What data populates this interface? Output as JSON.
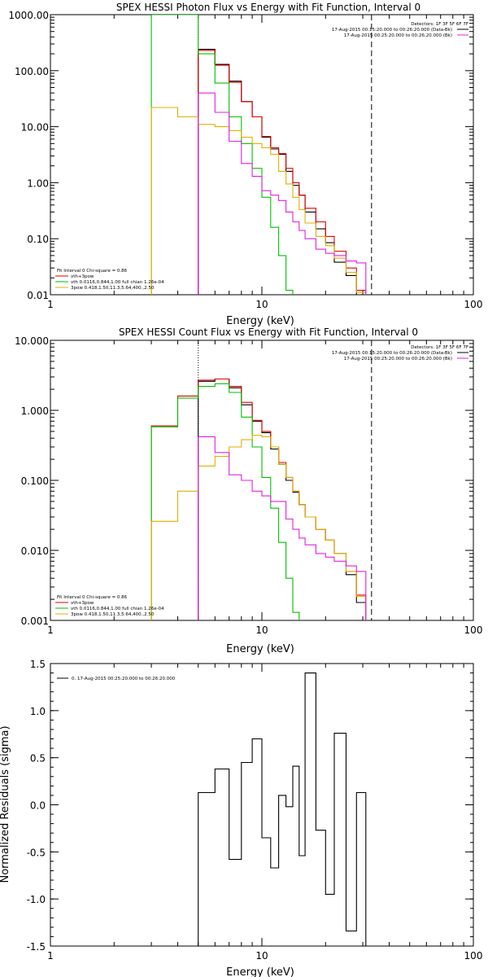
{
  "chart_data": [
    {
      "type": "line",
      "id": "photon",
      "title": "SPEX HESSI Photon Flux vs Energy with Fit Function, Interval 0",
      "xlabel": "Energy (keV)",
      "ylabel": "",
      "xscale": "log",
      "yscale": "log",
      "xlim": [
        1,
        100
      ],
      "ylim": [
        0.01,
        1000
      ],
      "xticks": [
        "1",
        "10",
        "100"
      ],
      "yticks": [
        "0.01",
        "0.10",
        "1.00",
        "10.00",
        "100.00",
        "1000.00"
      ],
      "vlines": [
        {
          "x": 5.0,
          "style": "dotted",
          "color": "#8a0a8a"
        },
        {
          "x": 33.0,
          "style": "dashed",
          "color": "#000000"
        }
      ],
      "legend_topright": {
        "header": "Detectors: 1F 3F 5F 6F 7F",
        "entries": [
          {
            "text": "17-Aug-2015 00:15:20.000 to 00:26:20.000 (Data-Bk)",
            "color": "#000000"
          },
          {
            "text": "17-Aug-2015 00:25:20.000 to 00:26:20.000 (Bk)",
            "color": "#e020e0"
          }
        ]
      },
      "legend_bottomleft": {
        "header": "Fit Interval 0   Chi-square = 0.86",
        "entries": [
          {
            "text": "vth+3pow",
            "color": "#e00000"
          },
          {
            "text": "vth 0.0116,0.844,1.00   full chian 1.26e-04",
            "color": "#00c000"
          },
          {
            "text": "3pow 0.418,1.50,11.3,5.64,400.,2.50",
            "color": "#e0b000"
          }
        ]
      },
      "bin_edges": [
        3.0,
        4.0,
        5.0,
        6.0,
        7.0,
        8.0,
        9.0,
        10.0,
        11.0,
        12.0,
        13.0,
        14.0,
        15.0,
        16.0,
        18.0,
        20.0,
        22.0,
        25.0,
        28.0,
        31.0,
        33.0
      ],
      "series": [
        {
          "name": "Data-Bk",
          "color": "#000000",
          "start": 5.0,
          "values": [
            240,
            130,
            65,
            28,
            15,
            6.5,
            4.0,
            3.2,
            1.6,
            0.9,
            0.6,
            0.3,
            0.15,
            0.085,
            0.038,
            0.022,
            0.01
          ]
        },
        {
          "name": "vth+3pow",
          "color": "#e00000",
          "start": 5.0,
          "values": [
            230,
            125,
            62,
            28,
            15,
            6.7,
            4.2,
            3.3,
            1.8,
            1.0,
            0.6,
            0.35,
            0.2,
            0.11,
            0.06,
            0.03,
            0.012
          ]
        },
        {
          "name": "vth",
          "color": "#00c000",
          "start": 3.0,
          "values": [
            1000,
            1000,
            200,
            60,
            15,
            5,
            1.8,
            0.55,
            0.16,
            0.05,
            0.012,
            0.003
          ]
        },
        {
          "name": "3pow",
          "color": "#e0b000",
          "start": 3.0,
          "values": [
            22,
            15,
            11,
            10,
            8.5,
            6.5,
            5.0,
            4.2,
            3.2,
            1.6,
            0.95,
            0.55,
            0.33,
            0.19,
            0.11,
            0.075,
            0.045,
            0.025,
            0.011
          ]
        },
        {
          "name": "Bk",
          "color": "#e020e0",
          "start": 5.0,
          "values": [
            40,
            18,
            5.5,
            2.2,
            1.3,
            0.72,
            0.6,
            0.48,
            0.3,
            0.2,
            0.14,
            0.1,
            0.065,
            0.055,
            0.05,
            0.04,
            0.037
          ]
        }
      ]
    },
    {
      "type": "line",
      "id": "count",
      "title": "SPEX HESSI Count Flux vs Energy with Fit Function, Interval 0",
      "xlabel": "Energy (keV)",
      "ylabel": "",
      "xscale": "log",
      "yscale": "log",
      "xlim": [
        1,
        100
      ],
      "ylim": [
        0.001,
        10
      ],
      "xticks": [
        "1",
        "10",
        "100"
      ],
      "yticks": [
        "0.001",
        "0.010",
        "0.100",
        "1.000",
        "10.000"
      ],
      "vlines": [
        {
          "x": 5.0,
          "style": "dotted",
          "color": "#000000"
        },
        {
          "x": 33.0,
          "style": "dashed",
          "color": "#000000"
        }
      ],
      "legend_topright": {
        "header": "Detectors: 1F 3F 5F 6F 7F",
        "entries": [
          {
            "text": "17-Aug-2015 00:15:20.000 to 00:26:20.000 (Data-Bk)",
            "color": "#000000"
          },
          {
            "text": "17-Aug-2015 00:25:20.000 to 00:26:20.000 (Bk)",
            "color": "#e020e0"
          }
        ]
      },
      "legend_bottomleft": {
        "header": "Fit Interval 0   Chi-square = 0.86",
        "entries": [
          {
            "text": "vth+3pow",
            "color": "#e00000"
          },
          {
            "text": "vth 0.0116,0.844,1.00   full chian 1.26e-04",
            "color": "#00c000"
          },
          {
            "text": "3pow 0.418,1.50,11.3,5.64,400.,2.50",
            "color": "#e0b000"
          }
        ]
      },
      "bin_edges": [
        3.0,
        4.0,
        5.0,
        6.0,
        7.0,
        8.0,
        9.0,
        10.0,
        11.0,
        12.0,
        13.0,
        14.0,
        15.0,
        16.0,
        18.0,
        20.0,
        22.0,
        25.0,
        28.0,
        31.0,
        33.0
      ],
      "series": [
        {
          "name": "Data-Bk",
          "color": "#000000",
          "start": 5.0,
          "values": [
            2.6,
            2.8,
            2.1,
            1.2,
            0.7,
            0.48,
            0.28,
            0.17,
            0.1,
            0.068,
            0.045,
            0.03,
            0.02,
            0.014,
            0.009,
            0.0045,
            0.0018
          ]
        },
        {
          "name": "vth+3pow",
          "color": "#e00000",
          "start": 3.0,
          "values": [
            0.6,
            1.6,
            2.7,
            2.8,
            2.2,
            1.3,
            0.72,
            0.5,
            0.3,
            0.18,
            0.11,
            0.07,
            0.045,
            0.03,
            0.02,
            0.014,
            0.009,
            0.005,
            0.0023
          ]
        },
        {
          "name": "vth",
          "color": "#00c000",
          "start": 3.0,
          "values": [
            0.58,
            1.5,
            2.2,
            2.4,
            1.8,
            0.8,
            0.3,
            0.11,
            0.04,
            0.013,
            0.004,
            0.0013
          ]
        },
        {
          "name": "3pow",
          "color": "#e0b000",
          "start": 3.0,
          "values": [
            0.026,
            0.07,
            0.16,
            0.22,
            0.3,
            0.38,
            0.44,
            0.42,
            0.3,
            0.17,
            0.11,
            0.07,
            0.045,
            0.03,
            0.02,
            0.014,
            0.009,
            0.005,
            0.0022
          ]
        },
        {
          "name": "Bk",
          "color": "#e020e0",
          "start": 5.0,
          "values": [
            0.42,
            0.25,
            0.12,
            0.1,
            0.07,
            0.06,
            0.05,
            0.05,
            0.028,
            0.02,
            0.015,
            0.012,
            0.009,
            0.008,
            0.007,
            0.006,
            0.005
          ]
        }
      ]
    },
    {
      "type": "line",
      "id": "residuals",
      "title": "",
      "xlabel": "Energy (keV)",
      "ylabel": "Normalized Residuals (sigma)",
      "xscale": "log",
      "yscale": "linear",
      "xlim": [
        1,
        100
      ],
      "ylim": [
        -1.5,
        1.5
      ],
      "xticks": [
        "1",
        "10",
        "100"
      ],
      "yticks": [
        "-1.5",
        "-1.0",
        "-0.5",
        "0.0",
        "0.5",
        "1.0",
        "1.5"
      ],
      "legend": {
        "entries": [
          {
            "text": "0. 17-Aug-2015 00:25:20.000 to 00:26:20.000",
            "color": "#000000"
          }
        ]
      },
      "bin_edges": [
        5.0,
        6.0,
        7.0,
        8.0,
        9.0,
        10.0,
        11.0,
        12.0,
        13.0,
        14.0,
        15.0,
        16.0,
        18.0,
        20.0,
        22.0,
        25.0,
        28.0,
        31.0,
        33.0
      ],
      "series": [
        {
          "name": "",
          "color": "#000000",
          "start": 5.0,
          "values": [
            0.13,
            0.38,
            -0.58,
            0.45,
            0.7,
            -0.35,
            -0.67,
            0.1,
            -0.02,
            0.41,
            -0.54,
            1.4,
            -0.27,
            -0.95,
            0.76,
            -1.34,
            0.13
          ]
        }
      ]
    }
  ]
}
